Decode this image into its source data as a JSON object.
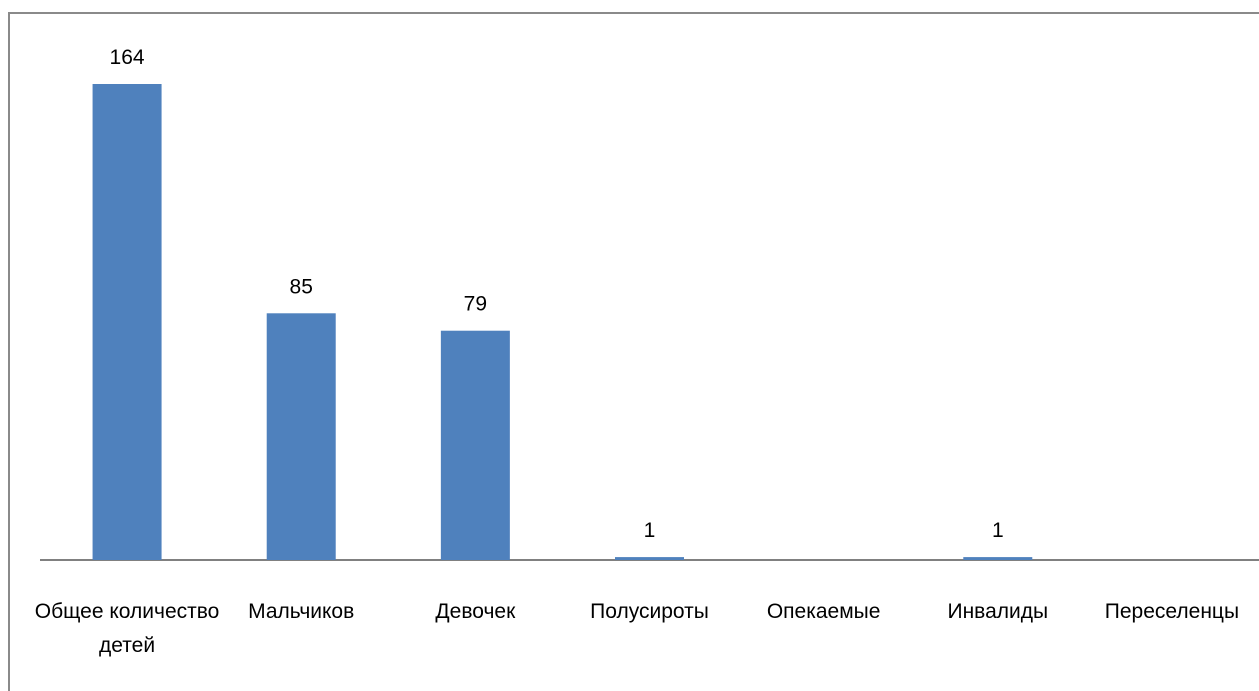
{
  "chart_data": {
    "type": "bar",
    "title": "",
    "xlabel": "",
    "ylabel": "",
    "categories": [
      "Общее количество детей",
      "Мальчиков",
      "Девочек",
      "Полусироты",
      "Опекаемые",
      "Инвалиды",
      "Переселенцы"
    ],
    "category_lines": [
      [
        "Общее количество",
        "детей"
      ],
      [
        "Мальчиков"
      ],
      [
        "Девочек"
      ],
      [
        "Полусироты"
      ],
      [
        "Опекаемые"
      ],
      [
        "Инвалиды"
      ],
      [
        "Переселенцы"
      ]
    ],
    "values": [
      164,
      85,
      79,
      1,
      null,
      1,
      null
    ],
    "data_labels": [
      "164",
      "85",
      "79",
      "1",
      "",
      "1",
      ""
    ],
    "ylim": [
      0,
      180
    ],
    "grid": false,
    "legend": "none",
    "bar_color": "#4f81bd"
  }
}
